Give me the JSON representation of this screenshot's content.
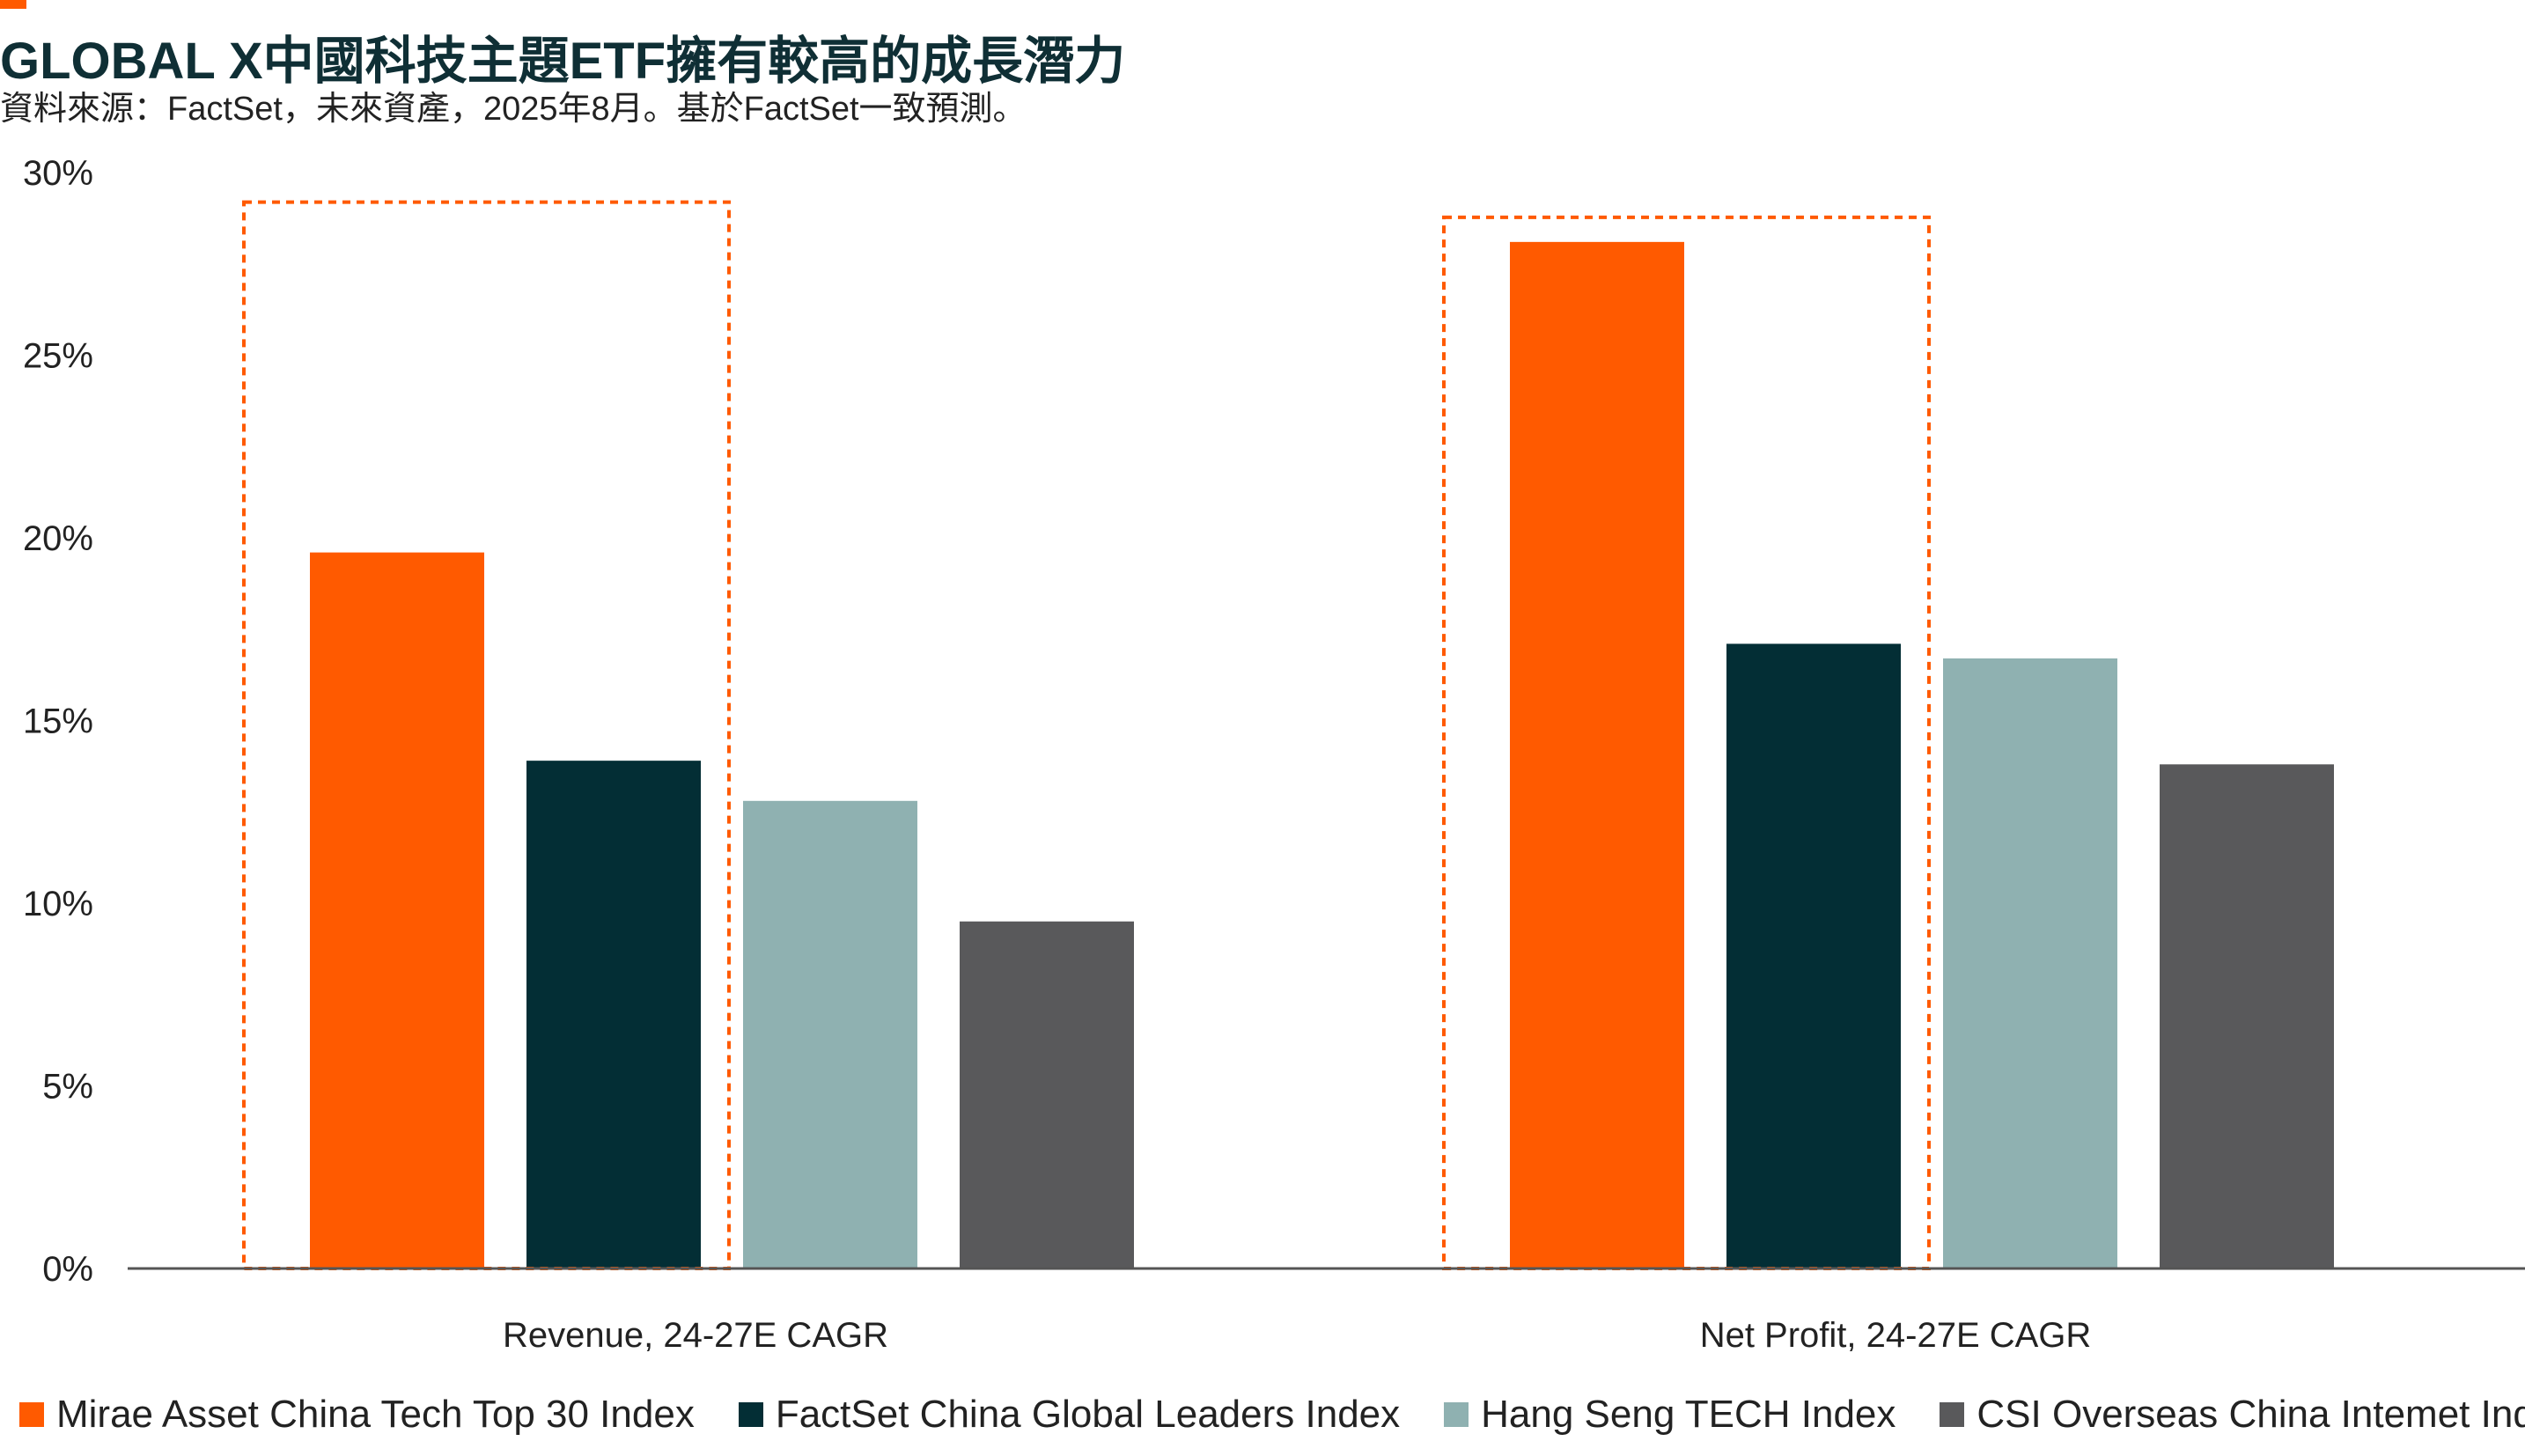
{
  "header": {
    "title": "GLOBAL X中國科技主題ETF擁有較高的成長潛力",
    "subtitle": "資料來源：FactSet，未來資產，2025年8月。基於FactSet一致預測。"
  },
  "colors": {
    "accent": "#ff5a00",
    "highlight_box": "#ff5a00",
    "axis": "#555555"
  },
  "chart_data": {
    "type": "bar",
    "categories": [
      "Revenue, 24-27E CAGR",
      "Net Profit, 24-27E CAGR"
    ],
    "series": [
      {
        "name": "Mirae Asset China Tech Top 30 Index",
        "color": "#ff5a00",
        "values": [
          19.6,
          28.1
        ]
      },
      {
        "name": "FactSet China Global Leaders Index",
        "color": "#032e35",
        "values": [
          13.9,
          17.1
        ]
      },
      {
        "name": "Hang Seng TECH Index",
        "color": "#8fb1b1",
        "values": [
          12.8,
          16.7
        ]
      },
      {
        "name": "CSI Overseas China Intemet Index",
        "color": "#59595b",
        "values": [
          9.5,
          13.8
        ]
      }
    ],
    "yticks": [
      "0%",
      "5%",
      "10%",
      "15%",
      "20%",
      "25%",
      "30%"
    ],
    "ylim": [
      0,
      30
    ],
    "highlighted_series": "Mirae Asset China Tech Top 30 Index",
    "grid": false,
    "legend_position": "bottom"
  }
}
